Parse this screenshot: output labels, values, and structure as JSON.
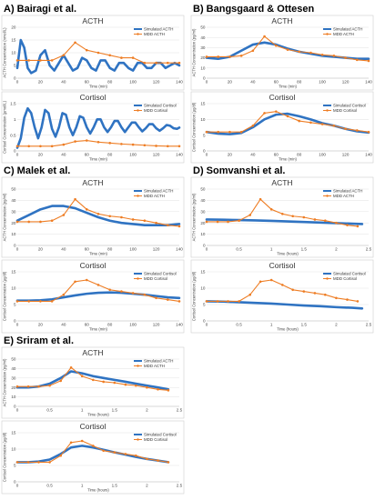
{
  "colors": {
    "simulated": "#2f73c2",
    "mdd": "#ee7d24"
  },
  "panels": [
    {
      "id": "A",
      "heading": "A) Bairagi et al."
    },
    {
      "id": "B",
      "heading": "B) Bangsgaard & Ottesen"
    },
    {
      "id": "C",
      "heading": "C) Malek et al."
    },
    {
      "id": "D",
      "heading": "D) Somvanshi et al."
    },
    {
      "id": "E",
      "heading": "E) Sriram et al."
    }
  ],
  "chart_data": [
    {
      "panel": "A",
      "type": "line",
      "title": "ACTH",
      "xlabel": "Time (min)",
      "ylabel": "ACTH Concentration (nmol/L)",
      "xlim": [
        0,
        140
      ],
      "ylim": [
        0,
        20
      ],
      "xticks": [
        0,
        20,
        40,
        60,
        80,
        100,
        120,
        140
      ],
      "yticks": [
        0,
        5,
        10,
        15,
        20
      ],
      "series": [
        {
          "name": "Simulated ACTH",
          "style": "sim",
          "x": [
            0,
            3,
            6,
            9,
            12,
            16,
            20,
            24,
            28,
            32,
            36,
            40,
            44,
            48,
            52,
            56,
            60,
            64,
            68,
            72,
            76,
            80,
            84,
            88,
            92,
            96,
            100,
            104,
            108,
            112,
            116,
            120,
            124,
            128,
            132,
            136,
            140
          ],
          "y": [
            4,
            15,
            12,
            4,
            2,
            3,
            9,
            11,
            5,
            3,
            6,
            9,
            6,
            3,
            4,
            8,
            7,
            4,
            3,
            7,
            7,
            4,
            3,
            6,
            6,
            4,
            3,
            6,
            6,
            4,
            4,
            6,
            6,
            4,
            5,
            6,
            5
          ]
        },
        {
          "name": "MDD ACTH",
          "style": "mdd",
          "x": [
            0,
            10,
            20,
            30,
            40,
            50,
            60,
            70,
            80,
            90,
            100,
            110,
            120,
            130,
            140
          ],
          "y": [
            7,
            7,
            7,
            7,
            9,
            14,
            11,
            10,
            9,
            8,
            8,
            6,
            6,
            6,
            6
          ]
        }
      ]
    },
    {
      "panel": "A",
      "type": "line",
      "title": "Cortisol",
      "xlabel": "Time (min)",
      "ylabel": "Cortisol Concentration (µmol/L)",
      "xlim": [
        0,
        140
      ],
      "ylim": [
        0,
        1.5
      ],
      "xticks": [
        0,
        20,
        40,
        60,
        80,
        100,
        120,
        140
      ],
      "yticks": [
        0,
        0.5,
        1,
        1.5
      ],
      "series": [
        {
          "name": "Simulated Cortisol",
          "style": "sim",
          "x": [
            0,
            3,
            6,
            9,
            12,
            15,
            18,
            21,
            24,
            27,
            30,
            33,
            36,
            39,
            42,
            45,
            48,
            51,
            54,
            57,
            60,
            63,
            66,
            69,
            72,
            75,
            78,
            81,
            84,
            87,
            90,
            93,
            96,
            99,
            102,
            105,
            108,
            111,
            114,
            117,
            120,
            123,
            126,
            129,
            132,
            135,
            138,
            140
          ],
          "y": [
            0.1,
            0.4,
            1.05,
            1.35,
            1.2,
            0.75,
            0.4,
            0.75,
            1.3,
            1.2,
            0.7,
            0.45,
            0.75,
            1.2,
            1.15,
            0.75,
            0.5,
            0.75,
            1.1,
            1.05,
            0.75,
            0.55,
            0.75,
            1.0,
            1.0,
            0.75,
            0.6,
            0.75,
            0.95,
            0.95,
            0.75,
            0.6,
            0.75,
            0.9,
            0.9,
            0.75,
            0.62,
            0.72,
            0.85,
            0.85,
            0.72,
            0.64,
            0.72,
            0.82,
            0.8,
            0.72,
            0.7,
            0.74
          ]
        },
        {
          "name": "MDD Cortisol",
          "style": "mdd",
          "x": [
            0,
            10,
            20,
            30,
            40,
            50,
            60,
            70,
            80,
            90,
            100,
            110,
            120,
            130,
            140
          ],
          "y": [
            0.15,
            0.15,
            0.15,
            0.15,
            0.2,
            0.3,
            0.33,
            0.28,
            0.25,
            0.22,
            0.2,
            0.18,
            0.16,
            0.15,
            0.15
          ]
        }
      ]
    },
    {
      "panel": "B",
      "type": "line",
      "title": "ACTH",
      "xlabel": "Time (min)",
      "ylabel": "ACTH Concentration (pg/ml)",
      "xlim": [
        0,
        140
      ],
      "ylim": [
        0,
        50
      ],
      "xticks": [
        0,
        20,
        40,
        60,
        80,
        100,
        120,
        140
      ],
      "yticks": [
        0,
        10,
        20,
        30,
        40,
        50
      ],
      "series": [
        {
          "name": "Simulated ACTH",
          "style": "sim",
          "x": [
            0,
            10,
            20,
            30,
            40,
            50,
            60,
            70,
            80,
            90,
            100,
            110,
            120,
            130,
            140
          ],
          "y": [
            20,
            19,
            21,
            27,
            33,
            35,
            33,
            29,
            26,
            24,
            22,
            21,
            20,
            19,
            19
          ]
        },
        {
          "name": "MDD ACTH",
          "style": "mdd",
          "x": [
            0,
            10,
            20,
            30,
            40,
            50,
            60,
            70,
            80,
            90,
            100,
            110,
            120,
            130,
            140
          ],
          "y": [
            21,
            21,
            21,
            22,
            27,
            41,
            32,
            28,
            26,
            25,
            23,
            22,
            20,
            18,
            17
          ]
        }
      ]
    },
    {
      "panel": "B",
      "type": "line",
      "title": "Cortisol",
      "xlabel": "Time (min)",
      "ylabel": "Cortisol Concentration (µg/dl)",
      "xlim": [
        0,
        140
      ],
      "ylim": [
        0,
        15
      ],
      "xticks": [
        0,
        20,
        40,
        60,
        80,
        100,
        120,
        140
      ],
      "yticks": [
        0,
        5,
        10,
        15
      ],
      "series": [
        {
          "name": "Simulated Cortisol",
          "style": "sim",
          "x": [
            0,
            10,
            20,
            30,
            40,
            50,
            60,
            70,
            80,
            90,
            100,
            110,
            120,
            130,
            140
          ],
          "y": [
            6,
            5.5,
            5.3,
            5.7,
            7.5,
            10,
            11.5,
            11.8,
            11,
            10,
            8.8,
            8,
            7,
            6.2,
            5.8
          ]
        },
        {
          "name": "MDD Cortisol",
          "style": "mdd",
          "x": [
            0,
            10,
            20,
            30,
            40,
            50,
            60,
            70,
            80,
            90,
            100,
            110,
            120,
            130,
            140
          ],
          "y": [
            6,
            6,
            6,
            6,
            8,
            12,
            12.5,
            11,
            9.5,
            9,
            8.5,
            8,
            7,
            6.5,
            6
          ]
        }
      ]
    },
    {
      "panel": "C",
      "type": "line",
      "title": "ACTH",
      "xlabel": "Time (min)",
      "ylabel": "ACTH Concentration (pg/ml)",
      "xlim": [
        0,
        140
      ],
      "ylim": [
        0,
        50
      ],
      "xticks": [
        0,
        20,
        40,
        60,
        80,
        100,
        120,
        140
      ],
      "yticks": [
        0,
        10,
        20,
        30,
        40,
        50
      ],
      "series": [
        {
          "name": "Simulated ACTH",
          "style": "sim",
          "x": [
            0,
            10,
            20,
            30,
            40,
            50,
            60,
            70,
            80,
            90,
            100,
            110,
            120,
            130,
            140
          ],
          "y": [
            22,
            27,
            32,
            35,
            35,
            33,
            29,
            25,
            22,
            20,
            19,
            18,
            18,
            18,
            19
          ]
        },
        {
          "name": "MDD ACTH",
          "style": "mdd",
          "x": [
            0,
            10,
            20,
            30,
            40,
            50,
            60,
            70,
            80,
            90,
            100,
            110,
            120,
            130,
            140
          ],
          "y": [
            21,
            21,
            21,
            22,
            27,
            41,
            32,
            28,
            26,
            25,
            23,
            22,
            20,
            18,
            17
          ]
        }
      ]
    },
    {
      "panel": "C",
      "type": "line",
      "title": "Cortisol",
      "xlabel": "Time (min)",
      "ylabel": "Cortisol Concentration (µg/dl)",
      "xlim": [
        0,
        140
      ],
      "ylim": [
        0,
        15
      ],
      "xticks": [
        0,
        20,
        40,
        60,
        80,
        100,
        120,
        140
      ],
      "yticks": [
        0,
        5,
        10,
        15
      ],
      "series": [
        {
          "name": "Simulated Cortisol",
          "style": "sim",
          "x": [
            0,
            10,
            20,
            30,
            40,
            50,
            60,
            70,
            80,
            90,
            100,
            110,
            120,
            130,
            140
          ],
          "y": [
            6.2,
            6.2,
            6.3,
            6.6,
            7.2,
            7.8,
            8.3,
            8.6,
            8.7,
            8.6,
            8.3,
            8,
            7.6,
            7.2,
            7
          ]
        },
        {
          "name": "MDD Cortisol",
          "style": "mdd",
          "x": [
            0,
            10,
            20,
            30,
            40,
            50,
            60,
            70,
            80,
            90,
            100,
            110,
            120,
            130,
            140
          ],
          "y": [
            6,
            6,
            6,
            6,
            8,
            12,
            12.5,
            11,
            9.5,
            9,
            8.5,
            8,
            7,
            6.5,
            6
          ]
        }
      ]
    },
    {
      "panel": "D",
      "type": "line",
      "title": "ACTH",
      "xlabel": "Time (hours)",
      "ylabel": "ACTH Concentration (pg/ml)",
      "xlim": [
        0,
        2.5
      ],
      "ylim": [
        0,
        50
      ],
      "xticks": [
        0,
        0.5,
        1,
        1.5,
        2,
        2.5
      ],
      "yticks": [
        0,
        10,
        20,
        30,
        40,
        50
      ],
      "series": [
        {
          "name": "Simulated ACTH",
          "style": "sim",
          "x": [
            0,
            0.25,
            0.5,
            0.75,
            1,
            1.25,
            1.5,
            1.75,
            2,
            2.25,
            2.4
          ],
          "y": [
            23,
            22.8,
            22.5,
            22.2,
            21.8,
            21.3,
            20.8,
            20.3,
            19.8,
            19.3,
            19
          ]
        },
        {
          "name": "MDD ACTH",
          "style": "mdd",
          "x": [
            0,
            0.17,
            0.33,
            0.5,
            0.67,
            0.83,
            1,
            1.17,
            1.33,
            1.5,
            1.67,
            1.83,
            2,
            2.17,
            2.33
          ],
          "y": [
            21,
            21,
            21,
            22,
            27,
            41,
            32,
            28,
            26,
            25,
            23,
            22,
            20,
            18,
            17
          ]
        }
      ]
    },
    {
      "panel": "D",
      "type": "line",
      "title": "Cortisol",
      "xlabel": "Time (hours)",
      "ylabel": "Cortisol Concentration (µg/dl)",
      "xlim": [
        0,
        2.5
      ],
      "ylim": [
        0,
        15
      ],
      "xticks": [
        0,
        0.5,
        1,
        1.5,
        2,
        2.5
      ],
      "yticks": [
        0,
        5,
        10,
        15
      ],
      "series": [
        {
          "name": "Simulated Cortisol",
          "style": "sim",
          "x": [
            0,
            0.25,
            0.5,
            0.75,
            1,
            1.25,
            1.5,
            1.75,
            2,
            2.25,
            2.4
          ],
          "y": [
            6,
            5.9,
            5.7,
            5.5,
            5.3,
            5,
            4.7,
            4.5,
            4.2,
            4,
            3.8
          ]
        },
        {
          "name": "MDD Cortisol",
          "style": "mdd",
          "x": [
            0,
            0.17,
            0.33,
            0.5,
            0.67,
            0.83,
            1,
            1.17,
            1.33,
            1.5,
            1.67,
            1.83,
            2,
            2.17,
            2.33
          ],
          "y": [
            6,
            6,
            6,
            6,
            8,
            12,
            12.5,
            11,
            9.5,
            9,
            8.5,
            8,
            7,
            6.5,
            6
          ]
        }
      ]
    },
    {
      "panel": "E",
      "type": "line",
      "title": "ACTH",
      "xlabel": "Time (hours)",
      "ylabel": "ACTH Concentration (pg/ml)",
      "xlim": [
        0,
        2.5
      ],
      "ylim": [
        0,
        50
      ],
      "xticks": [
        0,
        0.5,
        1,
        1.5,
        2,
        2.5
      ],
      "yticks": [
        0,
        10,
        20,
        30,
        40,
        50
      ],
      "series": [
        {
          "name": "Simulated ACTH",
          "style": "sim",
          "x": [
            0,
            0.17,
            0.33,
            0.5,
            0.67,
            0.83,
            1,
            1.17,
            1.33,
            1.5,
            1.67,
            1.83,
            2,
            2.17,
            2.33
          ],
          "y": [
            20,
            20,
            21,
            24,
            30,
            37,
            35,
            32,
            30,
            28,
            26,
            24,
            22,
            20,
            18
          ]
        },
        {
          "name": "MDD ACTH",
          "style": "mdd",
          "x": [
            0,
            0.17,
            0.33,
            0.5,
            0.67,
            0.83,
            1,
            1.17,
            1.33,
            1.5,
            1.67,
            1.83,
            2,
            2.17,
            2.33
          ],
          "y": [
            21,
            21,
            21,
            22,
            27,
            41,
            32,
            28,
            26,
            25,
            23,
            22,
            20,
            18,
            17
          ]
        }
      ]
    },
    {
      "panel": "E",
      "type": "line",
      "title": "Cortisol",
      "xlabel": "Time (hours)",
      "ylabel": "Cortisol Concentration (µg/dl)",
      "xlim": [
        0,
        2.5
      ],
      "ylim": [
        0,
        15
      ],
      "xticks": [
        0,
        0.5,
        1,
        1.5,
        2,
        2.5
      ],
      "yticks": [
        0,
        5,
        10,
        15
      ],
      "series": [
        {
          "name": "Simulated Cortisol",
          "style": "sim",
          "x": [
            0,
            0.17,
            0.33,
            0.5,
            0.67,
            0.83,
            1,
            1.17,
            1.33,
            1.5,
            1.67,
            1.83,
            2,
            2.17,
            2.33
          ],
          "y": [
            6,
            6,
            6.2,
            6.8,
            8.5,
            10.5,
            11,
            10.5,
            9.8,
            9,
            8.3,
            7.6,
            7,
            6.5,
            6
          ]
        },
        {
          "name": "MDD Cortisol",
          "style": "mdd",
          "x": [
            0,
            0.17,
            0.33,
            0.5,
            0.67,
            0.83,
            1,
            1.17,
            1.33,
            1.5,
            1.67,
            1.83,
            2,
            2.17,
            2.33
          ],
          "y": [
            6,
            6,
            6,
            6,
            8,
            12,
            12.5,
            11,
            9.5,
            9,
            8.5,
            8,
            7,
            6.5,
            6
          ]
        }
      ]
    }
  ]
}
